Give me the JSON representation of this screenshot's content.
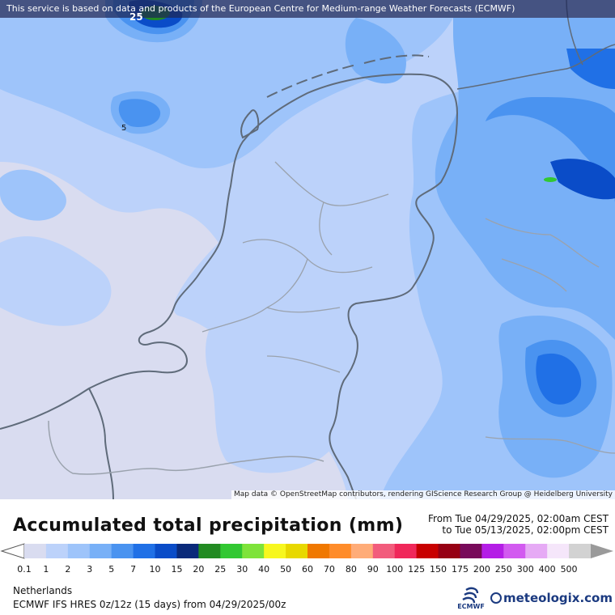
{
  "map": {
    "notice": "This service is based on data and products of the European Centre for Medium-range Weather Forecasts (ECMWF)",
    "attribution": "Map data © OpenStreetMap contributors, rendering GIScience Research Group @ Heidelberg University",
    "contour_labels": [
      "25",
      "5"
    ]
  },
  "legend": {
    "title": "Accumulated total precipitation (mm)",
    "period_from": "From Tue 04/29/2025, 02:00am CEST",
    "period_to": "to Tue 05/13/2025, 02:00pm CEST",
    "ticks": [
      "0.1",
      "1",
      "2",
      "3",
      "5",
      "7",
      "10",
      "15",
      "20",
      "25",
      "30",
      "40",
      "50",
      "60",
      "70",
      "80",
      "90",
      "100",
      "125",
      "150",
      "175",
      "200",
      "250",
      "300",
      "400",
      "500"
    ],
    "colors": [
      "#d9dcf0",
      "#bcd2fa",
      "#9ec4fa",
      "#78b0f7",
      "#4a93f0",
      "#2070e6",
      "#0a4cc8",
      "#0a2a7a",
      "#228b22",
      "#32c832",
      "#7ee33a",
      "#f7f71f",
      "#e8d800",
      "#f07800",
      "#ff8c2a",
      "#ffac78",
      "#f25c7c",
      "#f0285a",
      "#c80000",
      "#960014",
      "#780a5a",
      "#b41ee6",
      "#d25af0",
      "#e6aaf5",
      "#f5e6fa",
      "#d2d2d2"
    ],
    "arrow_left_color": "#ffffff",
    "arrow_right_color": "#9a9a9a"
  },
  "footer": {
    "region": "Netherlands",
    "model": "ECMWF IFS HRES 0z/12z (15 days) from  04/29/2025/00z",
    "ecmwf_logo": "ECMWF",
    "site_logo": "meteologix.com"
  }
}
